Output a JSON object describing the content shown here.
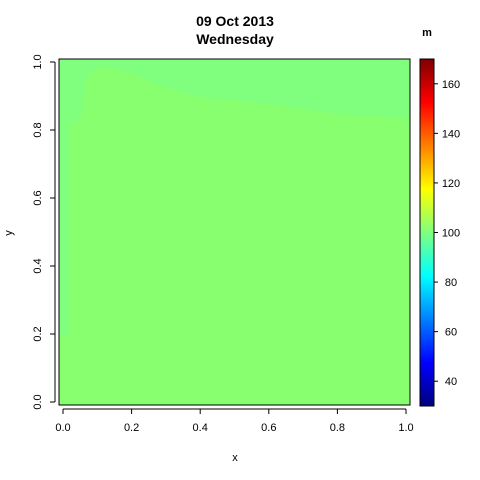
{
  "chart_data": {
    "type": "heatmap",
    "title_lines": [
      "09 Oct 2013",
      "Wednesday"
    ],
    "xlabel": "x",
    "ylabel": "y",
    "xlim": [
      0,
      1
    ],
    "ylim": [
      0,
      1
    ],
    "x_ticks": [
      "0.0",
      "0.2",
      "0.4",
      "0.6",
      "0.8",
      "1.0"
    ],
    "y_ticks": [
      "0.0",
      "0.2",
      "0.4",
      "0.6",
      "0.8",
      "1.0"
    ],
    "colorbar": {
      "unit": "m",
      "range": [
        30,
        170
      ],
      "ticks": [
        "40",
        "60",
        "80",
        "100",
        "120",
        "140",
        "160"
      ],
      "palette": "jet"
    },
    "field": {
      "base_color": "#88FF6E",
      "upper_region_color": "#80FF7E",
      "left_strip_color": "#80FF7E",
      "upper_region_boundary": [
        {
          "x": 0.0,
          "y": 0.82
        },
        {
          "x": 0.06,
          "y": 0.82
        },
        {
          "x": 0.08,
          "y": 0.95
        },
        {
          "x": 0.12,
          "y": 0.98
        },
        {
          "x": 0.2,
          "y": 0.96
        },
        {
          "x": 0.3,
          "y": 0.92
        },
        {
          "x": 0.4,
          "y": 0.89
        },
        {
          "x": 0.6,
          "y": 0.87
        },
        {
          "x": 0.8,
          "y": 0.84
        },
        {
          "x": 1.0,
          "y": 0.83
        }
      ],
      "left_strip_width": 0.03
    }
  }
}
